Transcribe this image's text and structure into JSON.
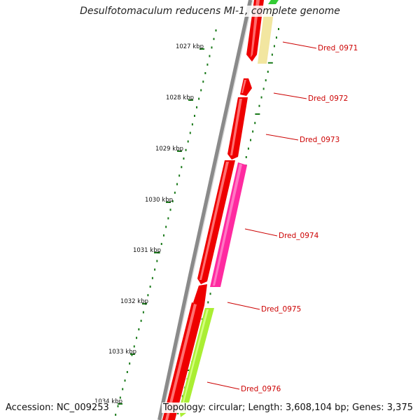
{
  "title": "Desulfotomaculum reducens MI-1, complete genome",
  "footer": {
    "accession": "Accession: NC_009253",
    "summary": "Topology: circular; Length: 3,608,104 bp; Genes: 3,375"
  },
  "ticks": [
    {
      "label": "1027 kbp"
    },
    {
      "label": "1028 kbp"
    },
    {
      "label": "1029 kbp"
    },
    {
      "label": "1030 kbp"
    },
    {
      "label": "1031 kbp"
    },
    {
      "label": "1032 kbp"
    },
    {
      "label": "1033 kbp"
    },
    {
      "label": "1034 kbp"
    }
  ],
  "genes": [
    {
      "label": "Dred_0971"
    },
    {
      "label": "Dred_0972"
    },
    {
      "label": "Dred_0973"
    },
    {
      "label": "Dred_0974"
    },
    {
      "label": "Dred_0975"
    },
    {
      "label": "Dred_0976"
    }
  ],
  "colors": {
    "backbone": "#8a8a8a",
    "cds": "#ee0000",
    "label": "#cc0000",
    "tick": "#1a7a1a",
    "magenta": "#ff2aa0",
    "pale_yellow": "#f2e6a0",
    "lime": "#aaee33",
    "green": "#33cc33"
  }
}
